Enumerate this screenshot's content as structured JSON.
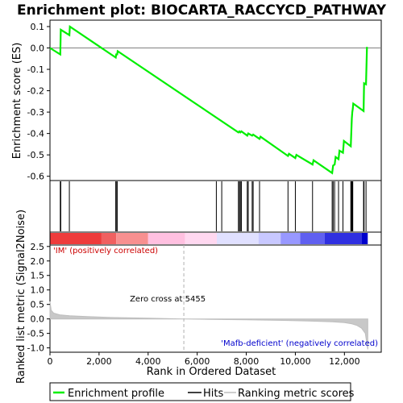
{
  "chart_data": {
    "type": "line",
    "title": "Enrichment plot: BIOCARTA_RACCYCD_PATHWAY",
    "top_panel": {
      "ylabel": "Enrichment score (ES)",
      "ylim": [
        -0.62,
        0.13
      ],
      "yticks": [
        "0.1",
        "0.0",
        "-0.1",
        "-0.2",
        "-0.3",
        "-0.4",
        "-0.5",
        "-0.6"
      ],
      "ytick_values": [
        0.1,
        0.0,
        -0.1,
        -0.2,
        -0.3,
        -0.4,
        -0.5,
        -0.6
      ],
      "series": [
        {
          "name": "Enrichment profile",
          "color": "#00ee00",
          "x": [
            0,
            420,
            440,
            790,
            810,
            2680,
            2700,
            2740,
            2760,
            7680,
            7720,
            7760,
            7800,
            8040,
            8080,
            8240,
            8280,
            8540,
            8580,
            9700,
            9740,
            10000,
            10040,
            10700,
            10740,
            11500,
            11540,
            11600,
            11640,
            11760,
            11800,
            11940,
            11980,
            12260,
            12280,
            12300,
            12320,
            12340,
            12360,
            12780,
            12800,
            12880,
            12920
          ],
          "y": [
            0.0,
            -0.03,
            0.085,
            0.06,
            0.1,
            -0.045,
            -0.03,
            -0.03,
            -0.015,
            -0.395,
            -0.39,
            -0.395,
            -0.39,
            -0.41,
            -0.4,
            -0.41,
            -0.405,
            -0.425,
            -0.415,
            -0.505,
            -0.495,
            -0.515,
            -0.5,
            -0.545,
            -0.525,
            -0.585,
            -0.55,
            -0.545,
            -0.51,
            -0.52,
            -0.48,
            -0.49,
            -0.435,
            -0.46,
            -0.39,
            -0.33,
            -0.3,
            -0.285,
            -0.26,
            -0.295,
            -0.165,
            -0.17,
            0.005
          ]
        }
      ]
    },
    "hits": {
      "name": "Hits",
      "x": [
        420,
        440,
        790,
        2680,
        2700,
        2740,
        6780,
        7000,
        7680,
        7720,
        7760,
        7800,
        8040,
        8080,
        8240,
        8280,
        8540,
        9700,
        10000,
        10700,
        11500,
        11540,
        11600,
        11760,
        11940,
        12260,
        12280,
        12300,
        12320,
        12340,
        12780,
        12800,
        12880
      ]
    },
    "gradient_bar": {
      "colors": [
        "#ee3b3b",
        "#f06060",
        "#f89090",
        "#ffc0e0",
        "#ffd8f0",
        "#e0e0ff",
        "#c8c8ff",
        "#9898ff",
        "#6060f0",
        "#3030e0",
        "#0000cc"
      ],
      "stops": [
        0,
        2100,
        2700,
        4000,
        5500,
        6800,
        8500,
        9400,
        10200,
        11200,
        12700
      ]
    },
    "bottom_panel": {
      "ylabel": "Ranked list metric (Signal2Noise)",
      "xlabel": "Rank in Ordered Dataset",
      "ylim": [
        -1.15,
        2.55
      ],
      "yticks": [
        "2.5",
        "2.0",
        "1.5",
        "1.0",
        "0.5",
        "0.0",
        "-0.5",
        "-1.0"
      ],
      "ytick_values": [
        2.5,
        2.0,
        1.5,
        1.0,
        0.5,
        0.0,
        -0.5,
        -1.0
      ],
      "xlim": [
        0,
        13500
      ],
      "xticks": [
        "0",
        "2,000",
        "4,000",
        "6,000",
        "8,000",
        "10,000",
        "12,000"
      ],
      "xtick_values": [
        0,
        2000,
        4000,
        6000,
        8000,
        10000,
        12000
      ],
      "metric_x": [
        0,
        50,
        150,
        400,
        800,
        1500,
        2500,
        4000,
        5455,
        6500,
        8000,
        9500,
        10500,
        11500,
        12000,
        12300,
        12500,
        12700,
        12850,
        12950
      ],
      "metric_y": [
        0.6,
        0.3,
        0.2,
        0.14,
        0.11,
        0.08,
        0.05,
        0.025,
        0.0,
        -0.015,
        -0.03,
        -0.05,
        -0.07,
        -0.1,
        -0.13,
        -0.17,
        -0.22,
        -0.32,
        -0.5,
        -1.05
      ],
      "zero_cross": 5455,
      "zero_cross_label": "Zero cross at 5455",
      "pos_label": "'IM' (positively correlated)",
      "neg_label": "'Mafb-deficient' (negatively correlated)"
    },
    "legend": [
      {
        "label": "Enrichment profile",
        "color": "#00ee00"
      },
      {
        "label": "Hits",
        "color": "#000000"
      },
      {
        "label": "Ranking metric scores",
        "color": "#bebebe"
      }
    ],
    "legend_position": "bottom"
  }
}
